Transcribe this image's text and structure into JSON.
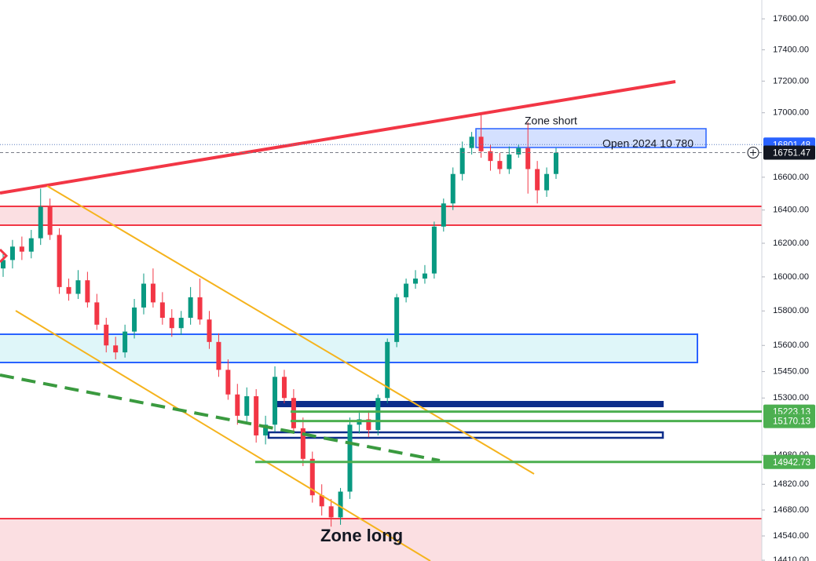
{
  "chart_data": {
    "type": "candlestick",
    "log_scale": true,
    "ylim": [
      14406,
      17723
    ],
    "yticks": [
      {
        "value": 17600,
        "label": "17600.00"
      },
      {
        "value": 17400,
        "label": "17400.00"
      },
      {
        "value": 17200,
        "label": "17200.00"
      },
      {
        "value": 17000,
        "label": "17000.00"
      },
      {
        "value": 16600,
        "label": "16600.00"
      },
      {
        "value": 16400,
        "label": "16400.00"
      },
      {
        "value": 16200,
        "label": "16200.00"
      },
      {
        "value": 16000,
        "label": "16000.00"
      },
      {
        "value": 15800,
        "label": "15800.00"
      },
      {
        "value": 15600,
        "label": "15600.00"
      },
      {
        "value": 15450,
        "label": "15450.00"
      },
      {
        "value": 15300,
        "label": "15300.00"
      },
      {
        "value": 14980,
        "label": "14980.00"
      },
      {
        "value": 14820,
        "label": "14820.00"
      },
      {
        "value": 14680,
        "label": "14680.00"
      },
      {
        "value": 14540,
        "label": "14540.00"
      },
      {
        "value": 14410,
        "label": "14410.00"
      }
    ],
    "up_color": "#089981",
    "down_color": "#f23645",
    "open": [
      16050,
      16100,
      16180,
      16150,
      16230,
      16420,
      16250,
      15940,
      15900,
      15980,
      15850,
      15720,
      15600,
      15560,
      15680,
      15820,
      15960,
      15850,
      15760,
      15700,
      15760,
      15880,
      15750,
      15620,
      15460,
      15320,
      15200,
      15310,
      15090,
      15150,
      15420,
      15300,
      15130,
      14960,
      14760,
      14700,
      14640,
      14780,
      15150,
      15180,
      15120,
      15300,
      15620,
      15880,
      15960,
      15990,
      16020,
      16300,
      16440,
      16620,
      16780,
      16850,
      16760,
      16700,
      16650,
      16740,
      16780,
      16650,
      16520,
      16620
    ],
    "high": [
      16140,
      16220,
      16240,
      16280,
      16530,
      16470,
      16290,
      15990,
      16040,
      16030,
      15900,
      15760,
      15650,
      15720,
      15870,
      16020,
      16050,
      15910,
      15810,
      15800,
      15940,
      15990,
      15800,
      15670,
      15520,
      15380,
      15360,
      15350,
      15200,
      15480,
      15460,
      15350,
      15190,
      15000,
      14820,
      14740,
      14800,
      15190,
      15230,
      15230,
      15320,
      15640,
      15900,
      15990,
      16040,
      16070,
      16330,
      16470,
      16660,
      16820,
      16880,
      16990,
      16800,
      16750,
      16790,
      16800,
      16940,
      16700,
      16660,
      16780
    ],
    "low": [
      16000,
      16050,
      16100,
      16110,
      16190,
      16220,
      15900,
      15860,
      15870,
      15820,
      15690,
      15560,
      15520,
      15530,
      15640,
      15780,
      15820,
      15720,
      15650,
      15660,
      15720,
      15720,
      15580,
      15420,
      15290,
      15150,
      15160,
      15050,
      15040,
      15110,
      15270,
      15100,
      14920,
      14720,
      14650,
      14590,
      14600,
      14740,
      15100,
      15080,
      15090,
      15270,
      15590,
      15850,
      15930,
      15960,
      15990,
      16270,
      16400,
      16580,
      16740,
      16720,
      16640,
      16620,
      16620,
      16720,
      16500,
      16440,
      16480,
      16590
    ],
    "close": [
      16100,
      16180,
      16150,
      16230,
      16420,
      16250,
      15940,
      15900,
      15980,
      15850,
      15720,
      15600,
      15560,
      15680,
      15820,
      15960,
      15850,
      15760,
      15700,
      15760,
      15880,
      15750,
      15620,
      15460,
      15320,
      15200,
      15310,
      15090,
      15150,
      15420,
      15300,
      15130,
      14960,
      14760,
      14700,
      14640,
      14780,
      15150,
      15180,
      15120,
      15300,
      15620,
      15880,
      15960,
      15990,
      16020,
      16300,
      16440,
      16620,
      16780,
      16850,
      16760,
      16700,
      16650,
      16740,
      16780,
      16650,
      16520,
      16620,
      16751
    ],
    "last_price": 16751.47,
    "line_price": 16801.48,
    "levels": [
      15223.13,
      15170.13,
      14942.73
    ],
    "level_color": "#4caf50",
    "annotations": [
      "Zone short",
      "Open 2024 10 780",
      "Zone long"
    ]
  }
}
